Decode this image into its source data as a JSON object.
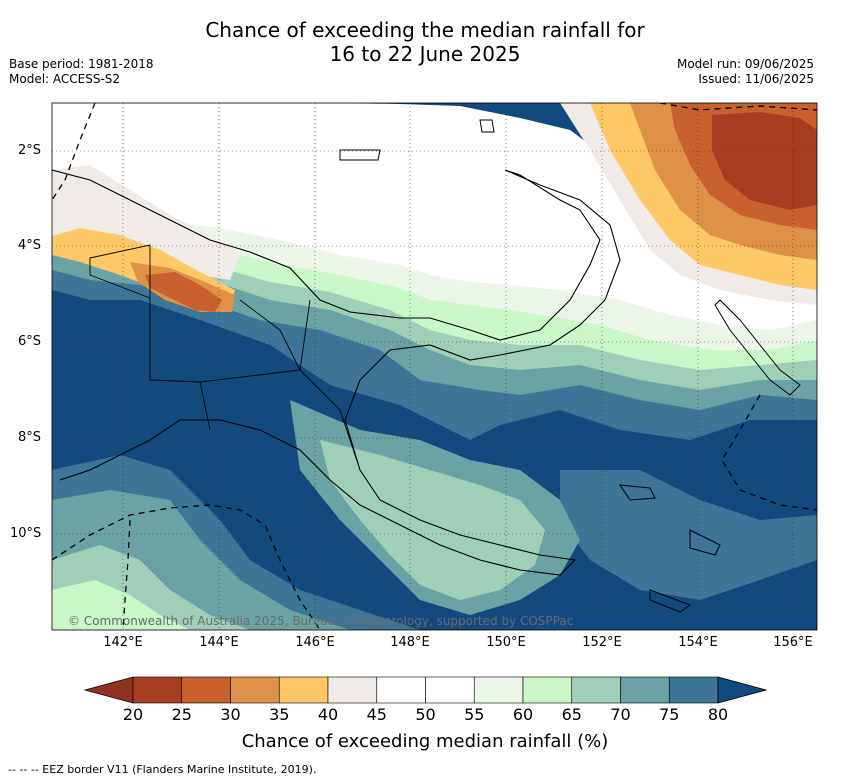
{
  "title_line1": "Chance of exceeding the median rainfall for",
  "title_line2": "16 to 22 June 2025",
  "base_period": "Base period: 1981-2018",
  "model": "Model: ACCESS-S2",
  "model_run": "Model run: 09/06/2025",
  "issued": "Issued: 11/06/2025",
  "lat_labels": [
    "2°S",
    "4°S",
    "6°S",
    "8°S",
    "10°S"
  ],
  "lon_labels": [
    "142°E",
    "144°E",
    "146°E",
    "148°E",
    "150°E",
    "152°E",
    "154°E",
    "156°E"
  ],
  "copyright": "© Commonwealth of Australia 2025, Bureau of Meteorology, supported by COSPPac",
  "colorbar": {
    "ticks": [
      "20",
      "25",
      "30",
      "35",
      "40",
      "45",
      "50",
      "55",
      "60",
      "65",
      "70",
      "75",
      "80"
    ],
    "colors": [
      "#a63d1f",
      "#c9612f",
      "#df9147",
      "#fdc865",
      "#f0ebe6",
      "#ffffff",
      "#ffffff",
      "#ecf6e8",
      "#c9f7c7",
      "#9fcfb8",
      "#6aa3a3",
      "#3d7597"
    ],
    "low_extend_color": "#8f3220",
    "high_extend_color": "#124a80",
    "label": "Chance of exceeding median rainfall (%)"
  },
  "footnote": "-- -- -- EEZ border V11 (Flanders Marine Institute, 2019).",
  "map_region": {
    "lon_range": [
      140.8,
      156.4
    ],
    "lat_range": [
      -12,
      -1
    ],
    "projection": "equirectangular",
    "background_color": "#124a80",
    "gridlines": true
  }
}
